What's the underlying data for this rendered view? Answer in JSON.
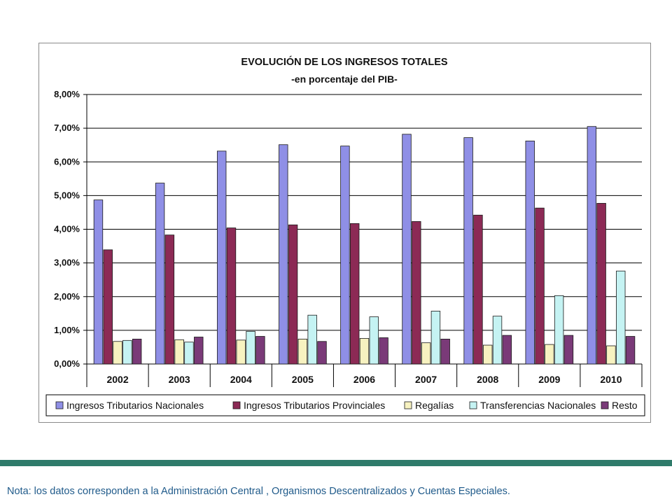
{
  "chart_data": {
    "type": "bar",
    "title": "EVOLUCIÓN DE LOS INGRESOS TOTALES",
    "subtitle": "-en porcentaje del PIB-",
    "categories": [
      "2002",
      "2003",
      "2004",
      "2005",
      "2006",
      "2007",
      "2008",
      "2009",
      "2010"
    ],
    "ylim": [
      0,
      8
    ],
    "yticks": [
      "0,00%",
      "1,00%",
      "2,00%",
      "3,00%",
      "4,00%",
      "5,00%",
      "6,00%",
      "7,00%",
      "8,00%"
    ],
    "grid": true,
    "legend_position": "bottom",
    "series": [
      {
        "name": "Ingresos Tributarios Nacionales",
        "color": "#8f8fe6",
        "values": [
          4.87,
          5.37,
          6.32,
          6.51,
          6.47,
          6.82,
          6.72,
          6.62,
          7.05
        ]
      },
      {
        "name": "Ingresos Tributarios Provinciales",
        "color": "#8c2a55",
        "values": [
          3.39,
          3.83,
          4.04,
          4.13,
          4.17,
          4.23,
          4.42,
          4.63,
          4.77
        ]
      },
      {
        "name": "Regalías",
        "color": "#f7f2c0",
        "values": [
          0.67,
          0.72,
          0.71,
          0.74,
          0.76,
          0.63,
          0.56,
          0.58,
          0.54
        ]
      },
      {
        "name": "Transferencias Nacionales",
        "color": "#c5f3f3",
        "values": [
          0.7,
          0.65,
          0.97,
          1.45,
          1.4,
          1.57,
          1.42,
          2.03,
          2.76
        ]
      },
      {
        "name": "Resto",
        "color": "#7a3a78",
        "values": [
          0.74,
          0.8,
          0.82,
          0.67,
          0.78,
          0.74,
          0.85,
          0.85,
          0.82
        ]
      }
    ]
  },
  "footer": {
    "note": "Nota: los datos corresponden a la Administración Central , Organismos Descentralizados y Cuentas Especiales."
  }
}
